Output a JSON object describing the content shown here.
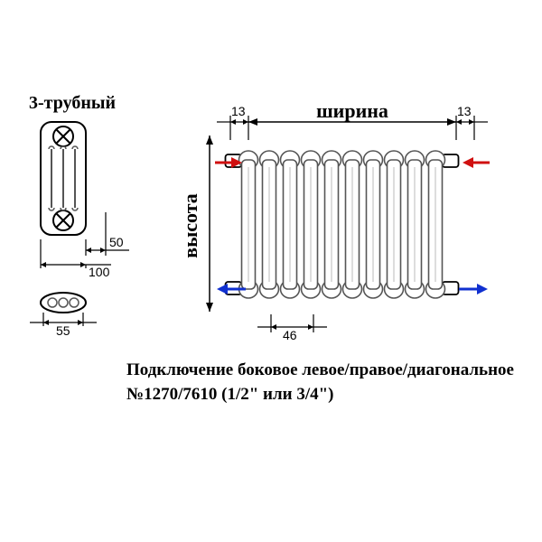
{
  "title": "3-трубный",
  "front_view": {
    "depth": "50",
    "width": "100",
    "bottom_width": "55"
  },
  "radiator": {
    "width_label": "ширина",
    "height_label": "высота",
    "offset_left": "13",
    "offset_right": "13",
    "column_pitch": "46",
    "num_columns": 10,
    "column_color": "#ffffff",
    "column_stroke": "#555555",
    "arrow_in_color": "#d01010",
    "arrow_out_color": "#1030d0"
  },
  "caption_line1": "Подключение боковое левое/правое/диагональное",
  "caption_line2": "№1270/7610 (1/2\" или 3/4\")",
  "colors": {
    "bg": "#ffffff",
    "stroke": "#000000",
    "mid_stroke": "#555555"
  }
}
